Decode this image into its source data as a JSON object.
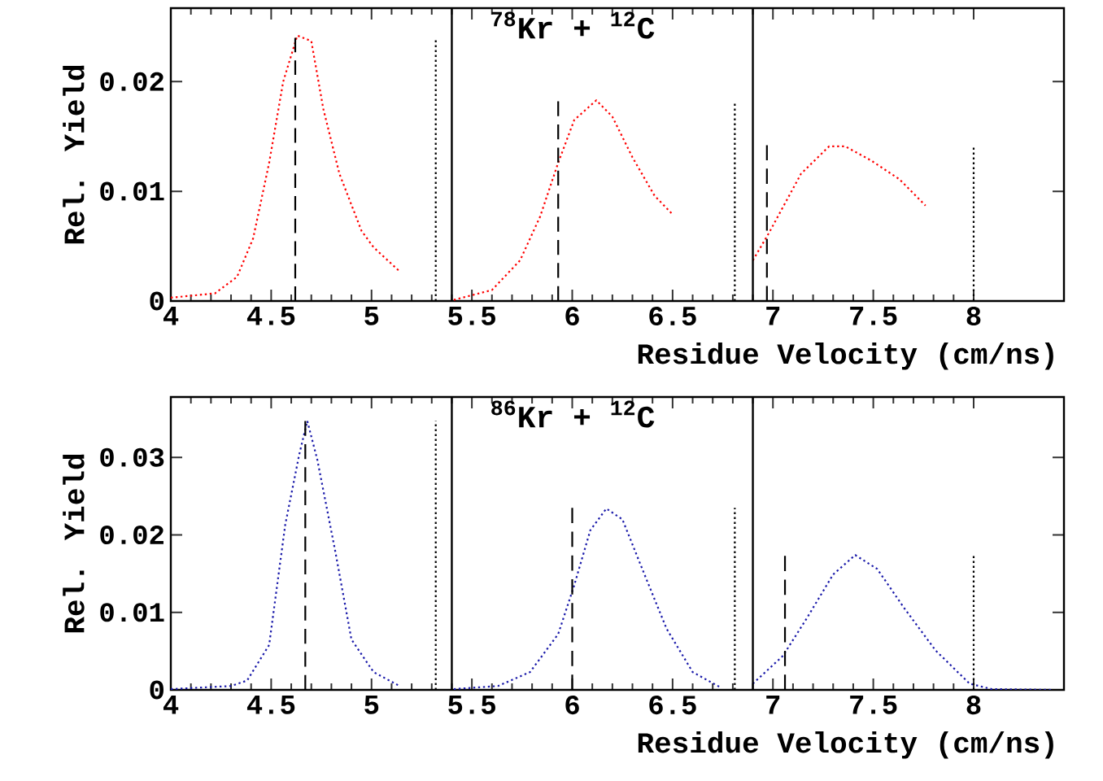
{
  "chart_data": [
    {
      "type": "line",
      "xlabel": "Residue Velocity (cm/ns)",
      "ylabel": "Rel. Yield",
      "annotations": [
        "$^{78}$Kr + $^{12}$C"
      ],
      "xlim": [
        4,
        8.45
      ],
      "ylim": [
        0,
        0.0267
      ],
      "xticks": [
        4,
        4.5,
        5,
        5.5,
        6,
        6.5,
        7,
        7.5,
        8
      ],
      "yticks": [
        0,
        0.01,
        0.02
      ],
      "ref_lines": [
        {
          "axis": "x",
          "value": 5.4,
          "line_style": "solid",
          "color": "#000000"
        },
        {
          "axis": "x",
          "value": 6.9,
          "line_style": "solid",
          "color": "#000000"
        }
      ],
      "series": [
        {
          "color": "#ff0000",
          "line_style": "dotted",
          "x": [
            4.0,
            4.22,
            4.33,
            4.41,
            4.49,
            4.56,
            4.63,
            4.7,
            4.76,
            4.84,
            4.95,
            5.01,
            5.14
          ],
          "values": [
            0.0003,
            0.0007,
            0.0022,
            0.0057,
            0.0126,
            0.02,
            0.0242,
            0.0237,
            0.0175,
            0.0116,
            0.0064,
            0.0049,
            0.0027
          ]
        },
        {
          "color": "#ff0000",
          "line_style": "dotted",
          "x": [
            5.41,
            5.6,
            5.74,
            5.84,
            5.93,
            6.01,
            6.12,
            6.2,
            6.3,
            6.41,
            6.5
          ],
          "values": [
            0.0001,
            0.001,
            0.0037,
            0.0077,
            0.0126,
            0.0165,
            0.0183,
            0.0168,
            0.0131,
            0.0096,
            0.0079
          ]
        },
        {
          "color": "#ff0000",
          "line_style": "dotted",
          "x": [
            6.9,
            6.98,
            7.14,
            7.28,
            7.36,
            7.49,
            7.63,
            7.76
          ],
          "values": [
            0.0037,
            0.0062,
            0.0116,
            0.0141,
            0.0141,
            0.0128,
            0.0111,
            0.0087
          ]
        },
        {
          "color": "#000000",
          "line_style": "dashed",
          "x": [
            4.62,
            4.62
          ],
          "values": [
            0,
            0.024
          ]
        },
        {
          "color": "#000000",
          "line_style": "dotted",
          "x": [
            5.32,
            5.32
          ],
          "values": [
            0,
            0.024
          ]
        },
        {
          "color": "#000000",
          "line_style": "dashed",
          "x": [
            5.93,
            5.93
          ],
          "values": [
            0,
            0.0182
          ]
        },
        {
          "color": "#000000",
          "line_style": "dotted",
          "x": [
            6.81,
            6.81
          ],
          "values": [
            0,
            0.0182
          ]
        },
        {
          "color": "#000000",
          "line_style": "dashed",
          "x": [
            6.97,
            6.97
          ],
          "values": [
            0,
            0.0142
          ]
        },
        {
          "color": "#000000",
          "line_style": "dotted",
          "x": [
            8.0,
            8.0
          ],
          "values": [
            0,
            0.0142
          ]
        }
      ]
    },
    {
      "type": "line",
      "xlabel": "Residue Velocity (cm/ns)",
      "ylabel": "Rel. Yield",
      "annotations": [
        "$^{86}$Kr + $^{12}$C"
      ],
      "xlim": [
        4,
        8.45
      ],
      "ylim": [
        0,
        0.0378
      ],
      "xticks": [
        4,
        4.5,
        5,
        5.5,
        6,
        6.5,
        7,
        7.5,
        8
      ],
      "yticks": [
        0,
        0.01,
        0.02,
        0.03
      ],
      "ref_lines": [
        {
          "axis": "x",
          "value": 5.4,
          "line_style": "solid",
          "color": "#000000"
        },
        {
          "axis": "x",
          "value": 6.9,
          "line_style": "solid",
          "color": "#000000"
        }
      ],
      "series": [
        {
          "color": "#1a1aaa",
          "line_style": "dotted",
          "x": [
            4.0,
            4.3,
            4.38,
            4.49,
            4.57,
            4.64,
            4.68,
            4.73,
            4.82,
            4.9,
            5.01,
            5.14
          ],
          "values": [
            0.0001,
            0.0005,
            0.0012,
            0.0058,
            0.0213,
            0.0304,
            0.0347,
            0.0297,
            0.0178,
            0.0065,
            0.0023,
            0.0005
          ]
        },
        {
          "color": "#1a1aaa",
          "line_style": "dotted",
          "x": [
            5.41,
            5.63,
            5.79,
            5.93,
            6.01,
            6.09,
            6.17,
            6.25,
            6.36,
            6.47,
            6.6,
            6.74
          ],
          "values": [
            0.0001,
            0.0005,
            0.0023,
            0.0072,
            0.0135,
            0.0206,
            0.0234,
            0.022,
            0.0149,
            0.0079,
            0.0023,
            0.0003
          ]
        },
        {
          "color": "#1a1aaa",
          "line_style": "dotted",
          "x": [
            6.9,
            7.05,
            7.17,
            7.3,
            7.41,
            7.52,
            7.65,
            7.81,
            7.98,
            8.09,
            8.39
          ],
          "values": [
            0.0008,
            0.0044,
            0.0093,
            0.0149,
            0.0174,
            0.0156,
            0.0107,
            0.0051,
            0.0008,
            0.0001,
            0.0
          ]
        },
        {
          "color": "#000000",
          "line_style": "dashed",
          "x": [
            4.67,
            4.67
          ],
          "values": [
            0,
            0.0347
          ]
        },
        {
          "color": "#000000",
          "line_style": "dotted",
          "x": [
            5.32,
            5.32
          ],
          "values": [
            0,
            0.0347
          ]
        },
        {
          "color": "#000000",
          "line_style": "dashed",
          "x": [
            6.0,
            6.0
          ],
          "values": [
            0,
            0.0235
          ]
        },
        {
          "color": "#000000",
          "line_style": "dotted",
          "x": [
            6.81,
            6.81
          ],
          "values": [
            0,
            0.0235
          ]
        },
        {
          "color": "#000000",
          "line_style": "dashed",
          "x": [
            7.06,
            7.06
          ],
          "values": [
            0,
            0.0173
          ]
        },
        {
          "color": "#000000",
          "line_style": "dotted",
          "x": [
            8.0,
            8.0
          ],
          "values": [
            0,
            0.0173
          ]
        }
      ]
    }
  ]
}
